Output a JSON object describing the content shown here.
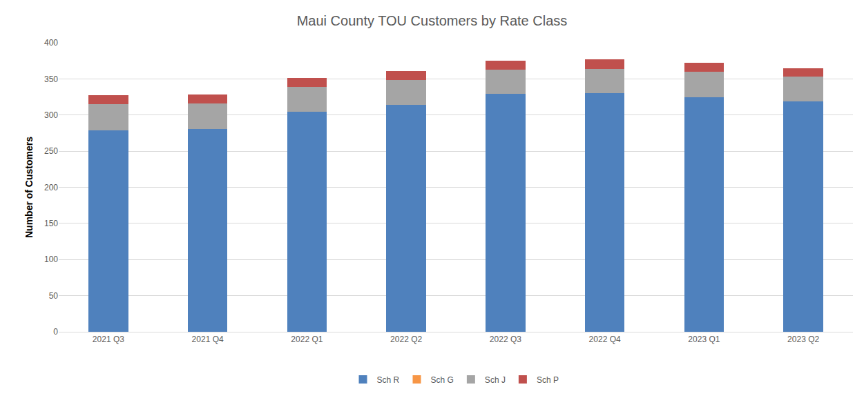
{
  "chart_data": {
    "type": "bar",
    "stacked": true,
    "title": "Maui County TOU Customers by Rate Class",
    "y_label": "Number of Customers",
    "categories": [
      "2021 Q3",
      "2021 Q4",
      "2022 Q1",
      "2022 Q2",
      "2022 Q3",
      "2022 Q4",
      "2023 Q1",
      "2023 Q2"
    ],
    "series": [
      {
        "name": "Sch R",
        "color": "#4f81bd",
        "values": [
          279,
          281,
          305,
          314,
          329,
          330,
          325,
          319
        ]
      },
      {
        "name": "Sch G",
        "color": "#f79646",
        "values": [
          0,
          0,
          0,
          0,
          0,
          0,
          0,
          0
        ]
      },
      {
        "name": "Sch J",
        "color": "#a5a5a5",
        "values": [
          36,
          35,
          34,
          34,
          34,
          34,
          35,
          34
        ]
      },
      {
        "name": "Sch P",
        "color": "#c0504d",
        "values": [
          12,
          12,
          12,
          13,
          12,
          13,
          12,
          12
        ]
      }
    ],
    "ylim": [
      0,
      400
    ],
    "yticks": [
      0,
      50,
      100,
      150,
      200,
      250,
      300,
      350,
      400
    ],
    "grid": true,
    "legend": "bottom"
  }
}
